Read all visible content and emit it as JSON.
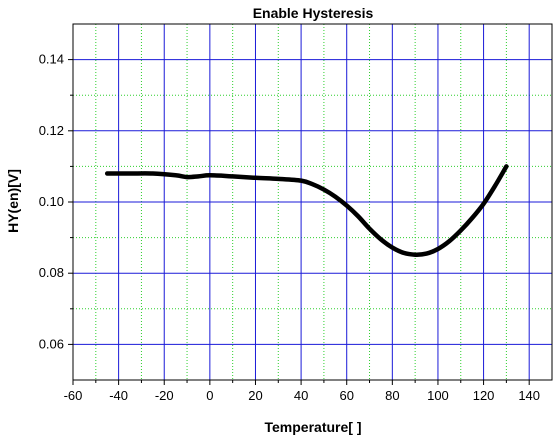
{
  "chart_data": {
    "type": "line",
    "title": "Enable Hysteresis",
    "xlabel": "Temperature[    ]",
    "ylabel": "HY(en)[V]",
    "xlim": [
      -60,
      150
    ],
    "ylim": [
      0.05,
      0.15
    ],
    "x_ticks": [
      "-60",
      "-40",
      "-20",
      "0",
      "20",
      "40",
      "60",
      "80",
      "100",
      "120",
      "140"
    ],
    "y_ticks": [
      "0.06",
      "0.08",
      "0.10",
      "0.12",
      "0.14"
    ],
    "grid": true,
    "colors": {
      "major_grid": "#1a1ad8",
      "minor_grid": "#2ecf2e",
      "series_line": "#000000"
    },
    "series": [
      {
        "x": [
          -45,
          -35,
          -25,
          -15,
          -10,
          -5,
          0,
          10,
          20,
          30,
          40,
          45,
          50,
          55,
          60,
          65,
          70,
          75,
          80,
          85,
          90,
          95,
          100,
          105,
          110,
          115,
          120,
          125,
          130
        ],
        "values": [
          0.108,
          0.108,
          0.108,
          0.1075,
          0.107,
          0.1072,
          0.1075,
          0.1072,
          0.1068,
          0.1065,
          0.106,
          0.105,
          0.1035,
          0.1015,
          0.099,
          0.096,
          0.0925,
          0.0895,
          0.0872,
          0.0857,
          0.0852,
          0.0855,
          0.0868,
          0.089,
          0.092,
          0.0955,
          0.0995,
          0.1045,
          0.11
        ]
      }
    ]
  }
}
